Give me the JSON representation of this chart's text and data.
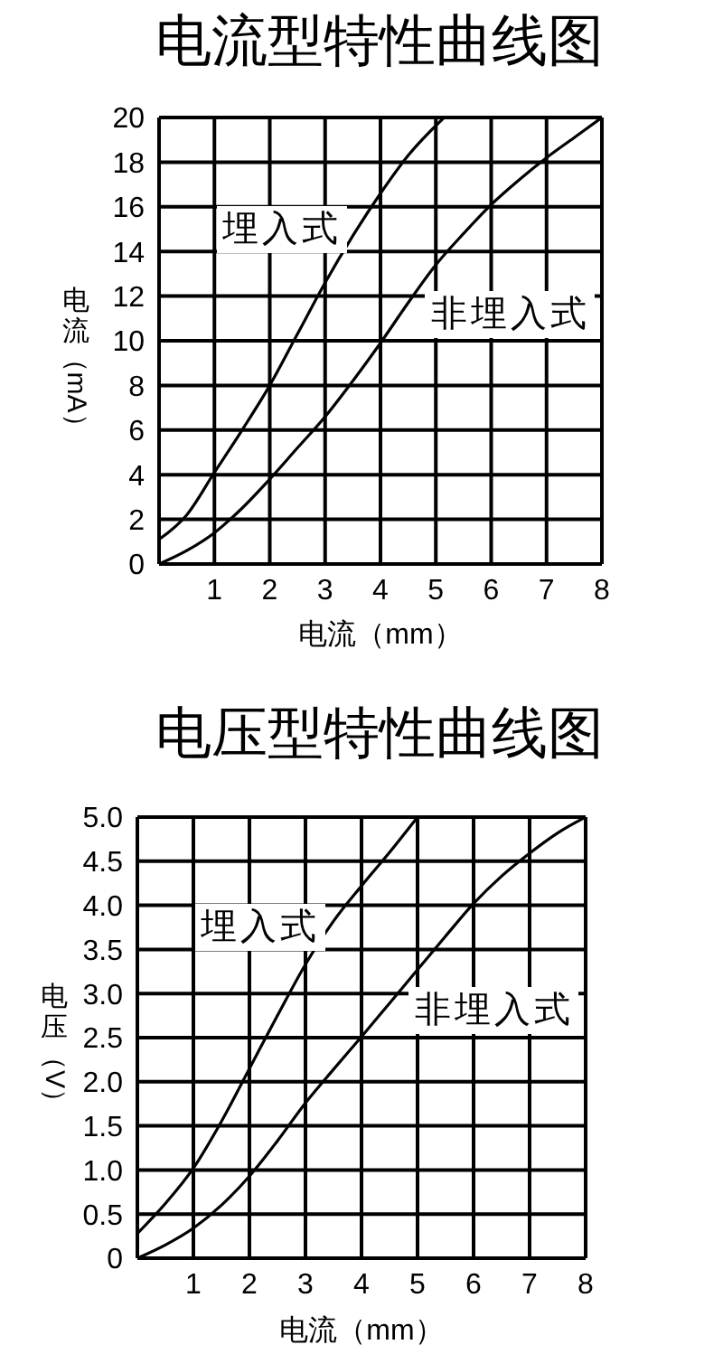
{
  "chart_data": [
    {
      "type": "line",
      "title": "电流型特性曲线图",
      "xlabel": "电流（mm）",
      "ylabel": "电流（mA）",
      "xlim": [
        0,
        8
      ],
      "xticks": [
        1,
        2,
        3,
        4,
        5,
        6,
        7,
        8
      ],
      "ylim": [
        0,
        20
      ],
      "yticks": [
        0,
        2,
        4,
        6,
        8,
        10,
        12,
        14,
        16,
        18,
        20
      ],
      "grid": true,
      "legend": false,
      "marker": "none",
      "line_style": "solid",
      "series": [
        {
          "name": "埋入式",
          "color": "#000000",
          "x": [
            0,
            0.5,
            1,
            1.5,
            2,
            2.5,
            3,
            3.5,
            4,
            4.5,
            5.15
          ],
          "values": [
            1.1,
            2.2,
            4.1,
            6,
            8,
            10.3,
            12.6,
            14.7,
            16.6,
            18.3,
            20
          ]
        },
        {
          "name": "非埋入式",
          "color": "#000000",
          "x": [
            0,
            0.5,
            1,
            1.5,
            2,
            2.5,
            3,
            3.5,
            4,
            4.5,
            5,
            5.5,
            6,
            6.5,
            7,
            7.5,
            8
          ],
          "values": [
            0,
            0.6,
            1.4,
            2.5,
            3.8,
            5.2,
            6.6,
            8.2,
            9.9,
            11.7,
            13.4,
            14.8,
            16.1,
            17.2,
            18.2,
            19.1,
            20
          ]
        }
      ]
    },
    {
      "type": "line",
      "title": "电压型特性曲线图",
      "xlabel": "电流（mm）",
      "ylabel": "电压（V）",
      "xlim": [
        0,
        8
      ],
      "xticks": [
        1,
        2,
        3,
        4,
        5,
        6,
        7,
        8
      ],
      "ylim": [
        0,
        5
      ],
      "yticks": [
        0,
        0.5,
        {
          "value": 1,
          "label": "1.0"
        },
        1.5,
        {
          "value": 2,
          "label": "2.0"
        },
        2.5,
        {
          "value": 3,
          "label": "3.0"
        },
        3.5,
        {
          "value": 4,
          "label": "4.0"
        },
        4.5,
        {
          "value": 5,
          "label": "5.0"
        }
      ],
      "grid": true,
      "legend": false,
      "marker": "none",
      "line_style": "solid",
      "series": [
        {
          "name": "埋入式",
          "color": "#000000",
          "x": [
            0,
            0.5,
            1,
            1.5,
            2,
            2.5,
            3,
            3.5,
            4,
            4.5,
            5
          ],
          "values": [
            0.28,
            0.62,
            1.02,
            1.55,
            2.15,
            2.75,
            3.33,
            3.82,
            4.22,
            4.6,
            5
          ]
        },
        {
          "name": "非埋入式",
          "color": "#000000",
          "x": [
            0,
            0.5,
            1,
            1.5,
            2,
            2.5,
            3,
            3.5,
            4,
            4.5,
            5,
            5.5,
            6,
            6.5,
            7,
            7.5,
            8
          ],
          "values": [
            0,
            0.15,
            0.34,
            0.6,
            0.93,
            1.33,
            1.76,
            2.14,
            2.51,
            2.89,
            3.27,
            3.65,
            4.02,
            4.33,
            4.59,
            4.82,
            5
          ]
        }
      ]
    }
  ]
}
